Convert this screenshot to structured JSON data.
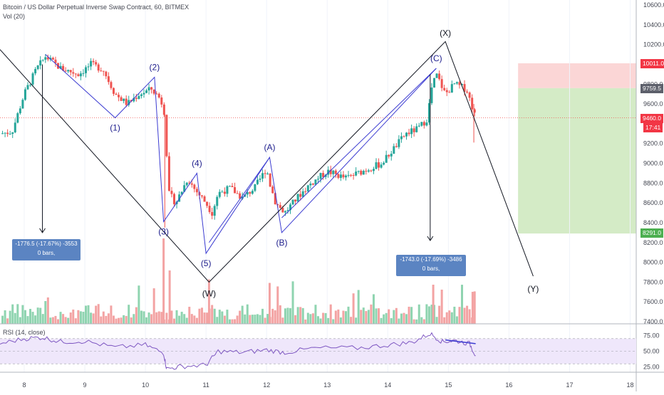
{
  "header": {
    "title": "Bitcoin / US Dollar Perpetual Inverse Swap Contract, 60, BITMEX",
    "volume_label": "Vol (20)",
    "rsi_label": "RSI (14, close)"
  },
  "colors": {
    "bull": "#26a69a",
    "bear": "#ef5350",
    "vol_bull": "#8fd4b0",
    "vol_bear": "#f3a3a3",
    "wave_line": "#3b3bd1",
    "rsi_line": "#7e57c2",
    "rsi_band": "#efe7fb",
    "target_zone": "#d4ebc6",
    "stop_zone": "#fbd6d6",
    "measure_box": "#5b84c2"
  },
  "price_labels": {
    "stop": "10011.0",
    "entry": "9759.5",
    "last": "9460.0",
    "countdown": "17:41",
    "target": "8291.0"
  },
  "measures": [
    {
      "line1": "-1776.5 (-17.67%) -3553",
      "line2": "0 bars,"
    },
    {
      "line1": "-1743.0 (-17.69%) -3486",
      "line2": "0 bars,"
    }
  ],
  "wave_labels": [
    "(1)",
    "(2)",
    "(3)",
    "(4)",
    "(5)",
    "(A)",
    "(B)",
    "(C)",
    "(W)",
    "(X)",
    "(Y)"
  ],
  "chart_data": {
    "type": "candlestick",
    "title": "Bitcoin / US Dollar Perpetual Inverse Swap Contract, 60, BITMEX",
    "x_ticks": [
      "8",
      "9",
      "10",
      "11",
      "12",
      "13",
      "14",
      "15",
      "16",
      "17",
      "18"
    ],
    "y_ticks": [
      "10600.0",
      "10400.0",
      "10200.0",
      "10000.0",
      "9800.0",
      "9600.0",
      "9400.0",
      "9200.0",
      "9000.0",
      "8800.0",
      "8600.0",
      "8400.0",
      "8200.0",
      "8000.0",
      "7800.0",
      "7600.0",
      "7400.0"
    ],
    "ylim": [
      7380,
      10650
    ],
    "xlim": [
      7.6,
      18.1
    ],
    "price_path": [
      [
        7.6,
        9300
      ],
      [
        7.8,
        9320
      ],
      [
        8.0,
        9700
      ],
      [
        8.2,
        9950
      ],
      [
        8.35,
        10080
      ],
      [
        8.6,
        9960
      ],
      [
        8.9,
        9900
      ],
      [
        9.1,
        10000
      ],
      [
        9.3,
        9950
      ],
      [
        9.5,
        9700
      ],
      [
        9.7,
        9600
      ],
      [
        9.9,
        9700
      ],
      [
        10.1,
        9750
      ],
      [
        10.25,
        9650
      ],
      [
        10.32,
        9500
      ],
      [
        10.38,
        8700
      ],
      [
        10.5,
        8600
      ],
      [
        10.7,
        8850
      ],
      [
        10.8,
        8750
      ],
      [
        11.0,
        8600
      ],
      [
        11.1,
        8500
      ],
      [
        11.2,
        8700
      ],
      [
        11.4,
        8750
      ],
      [
        11.6,
        8650
      ],
      [
        11.8,
        8750
      ],
      [
        12.0,
        8950
      ],
      [
        12.05,
        8800
      ],
      [
        12.15,
        8600
      ],
      [
        12.3,
        8500
      ],
      [
        12.5,
        8650
      ],
      [
        12.7,
        8780
      ],
      [
        13.0,
        8920
      ],
      [
        13.3,
        8850
      ],
      [
        13.5,
        8900
      ],
      [
        13.7,
        8950
      ],
      [
        13.9,
        9000
      ],
      [
        14.1,
        9150
      ],
      [
        14.3,
        9300
      ],
      [
        14.5,
        9350
      ],
      [
        14.65,
        9450
      ],
      [
        14.72,
        9750
      ],
      [
        14.8,
        9900
      ],
      [
        14.95,
        9700
      ],
      [
        15.1,
        9800
      ],
      [
        15.3,
        9750
      ],
      [
        15.45,
        9460
      ]
    ],
    "volume_spikes": [
      [
        10.3,
        7950
      ],
      [
        10.4,
        2300
      ],
      [
        11.05,
        2050
      ],
      [
        12.05,
        1950
      ],
      [
        14.75,
        1900
      ],
      [
        15.4,
        1700
      ]
    ],
    "rsi_series": [
      [
        7.6,
        62
      ],
      [
        8.0,
        70
      ],
      [
        8.3,
        72
      ],
      [
        8.6,
        65
      ],
      [
        9.0,
        66
      ],
      [
        9.5,
        56
      ],
      [
        10.0,
        60
      ],
      [
        10.3,
        47
      ],
      [
        10.35,
        22
      ],
      [
        10.6,
        26
      ],
      [
        11.0,
        28
      ],
      [
        11.2,
        50
      ],
      [
        11.6,
        48
      ],
      [
        12.0,
        52
      ],
      [
        12.3,
        48
      ],
      [
        12.8,
        55
      ],
      [
        13.5,
        55
      ],
      [
        14.0,
        60
      ],
      [
        14.4,
        64
      ],
      [
        14.7,
        78
      ],
      [
        14.9,
        65
      ],
      [
        15.1,
        67
      ],
      [
        15.35,
        62
      ],
      [
        15.45,
        43
      ]
    ],
    "rsi_levels": [
      "75.00",
      "50.00",
      "25.00"
    ],
    "long_short_position": {
      "entry": 9759.5,
      "stop": 10011.0,
      "target": 8291.0,
      "x_range": [
        16.15,
        18.1
      ]
    },
    "elliott_waves": {
      "impulse_blue": [
        {
          "label": "(1)",
          "x": 9.5,
          "price": 9460
        },
        {
          "label": "(2)",
          "x": 10.15,
          "price": 9870
        },
        {
          "label": "(3)",
          "x": 10.3,
          "price": 8410
        },
        {
          "label": "(4)",
          "x": 10.85,
          "price": 8900
        },
        {
          "label": "(5)",
          "x": 11.0,
          "price": 8090
        },
        {
          "label": "(A)",
          "x": 12.05,
          "price": 9060
        },
        {
          "label": "(B)",
          "x": 12.25,
          "price": 8300
        },
        {
          "label": "(C)",
          "x": 14.8,
          "price": 9960
        }
      ],
      "wxy_black": [
        {
          "label": "(W)",
          "x": 11.05,
          "price": 7800
        },
        {
          "label": "(X)",
          "x": 14.95,
          "price": 10230
        },
        {
          "label": "(Y)",
          "x": 16.4,
          "price": 7860
        }
      ]
    }
  }
}
